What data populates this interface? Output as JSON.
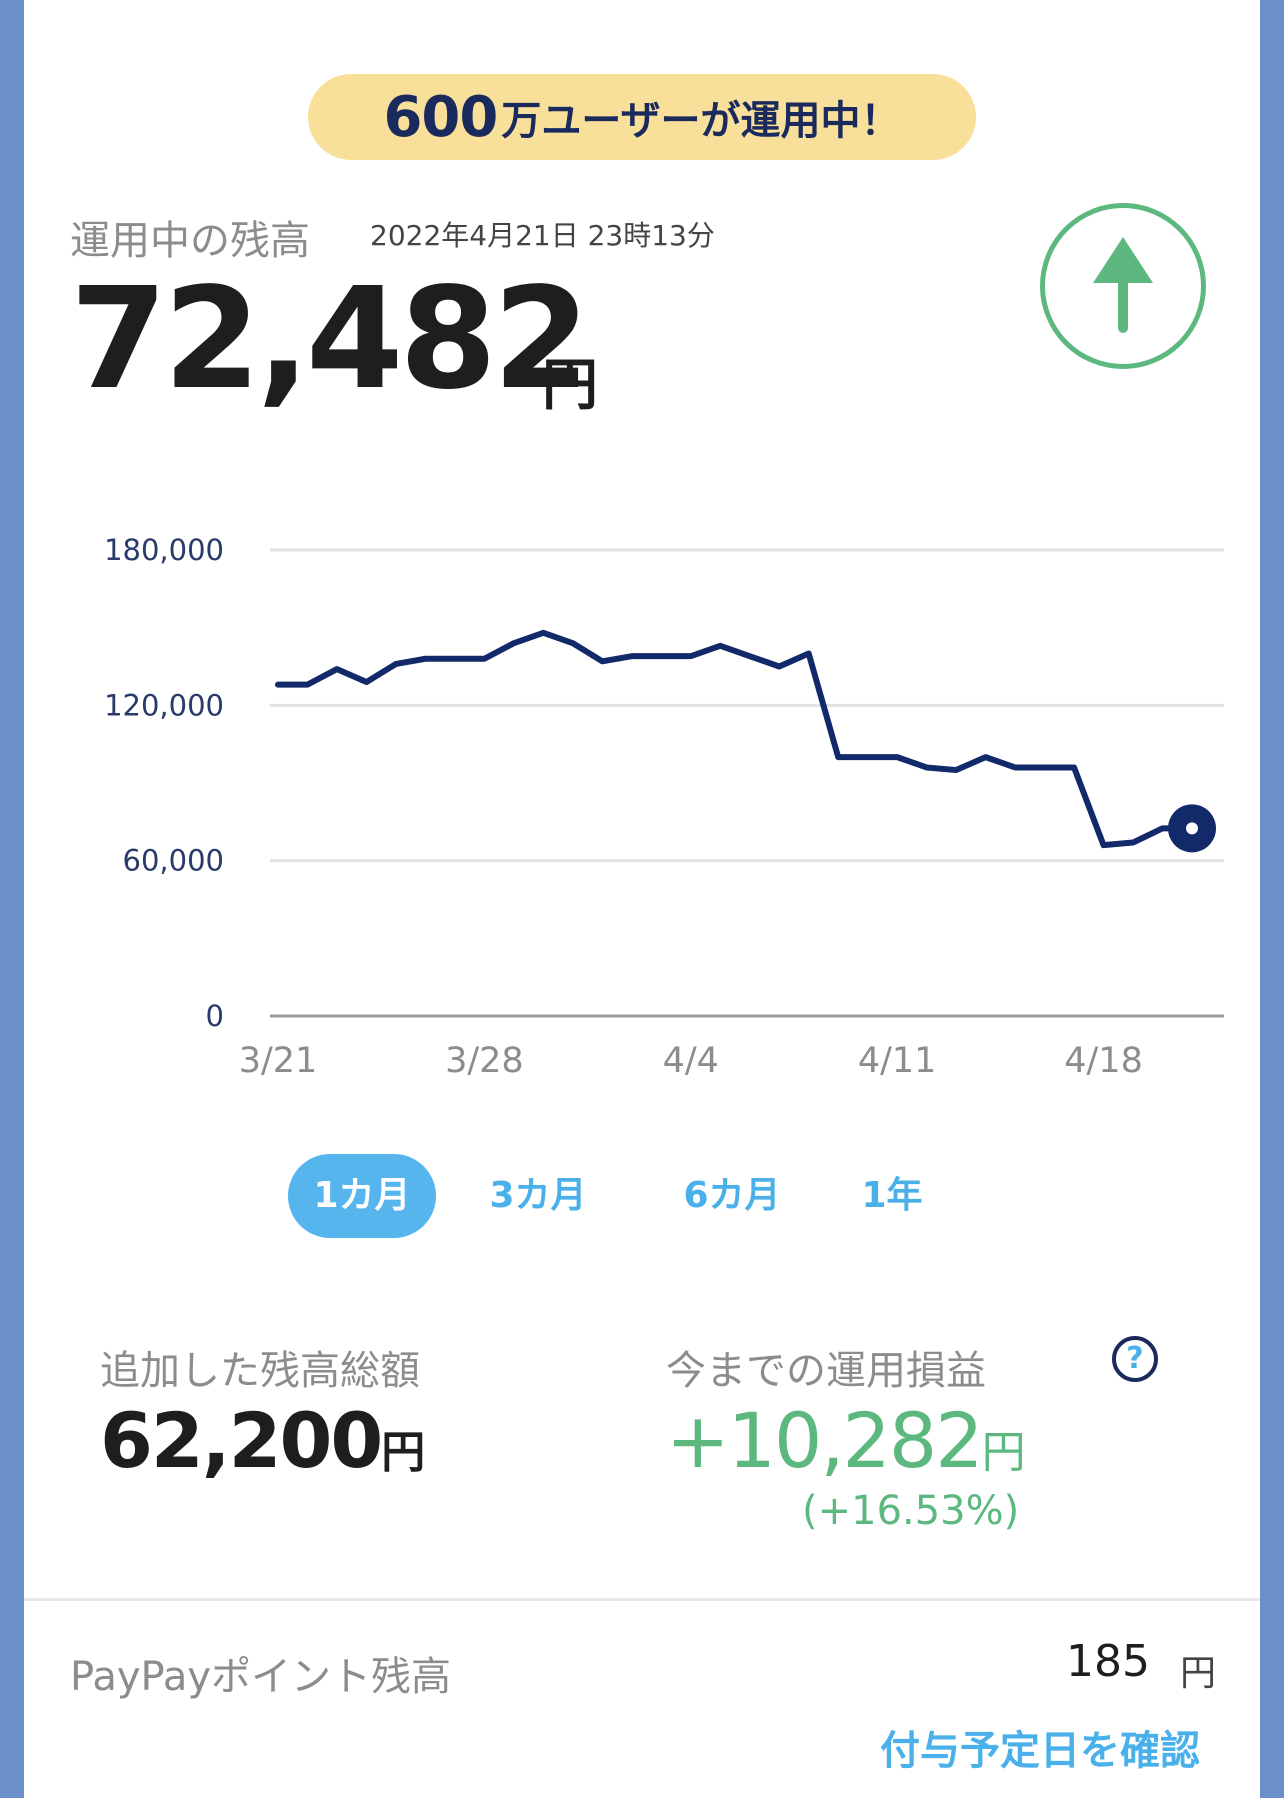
{
  "banner": {
    "count": "600",
    "text": "万ユーザーが運用中！"
  },
  "balance": {
    "label": "運用中の残高",
    "timestamp": "2022年4月21日 23時13分",
    "value": "72,482",
    "unit": "円"
  },
  "trend_icon": "arrow-up-icon",
  "colors": {
    "line": "#122a6a",
    "up": "#5cb87e",
    "accent": "#4ab0ea",
    "banner": "#f8e09a"
  },
  "chart_data": {
    "type": "line",
    "x_ticks": [
      "3/21",
      "3/28",
      "4/4",
      "4/11",
      "4/18"
    ],
    "y_ticks": [
      "180,000",
      "120,000",
      "60,000",
      "0"
    ],
    "ylim": [
      0,
      180000
    ],
    "grid": true,
    "series": [
      {
        "x": [
          "3/21",
          "3/22",
          "3/23",
          "3/24",
          "3/25",
          "3/26",
          "3/27",
          "3/28",
          "3/29",
          "3/30",
          "3/31",
          "4/1",
          "4/2",
          "4/3",
          "4/4",
          "4/5",
          "4/6",
          "4/7",
          "4/8",
          "4/9",
          "4/10",
          "4/11",
          "4/12",
          "4/13",
          "4/14",
          "4/15",
          "4/16",
          "4/17",
          "4/18",
          "4/19",
          "4/20",
          "4/21"
        ],
        "values": [
          128000,
          128000,
          134000,
          129000,
          136000,
          138000,
          138000,
          138000,
          144000,
          148000,
          144000,
          137000,
          139000,
          139000,
          139000,
          143000,
          139000,
          135000,
          140000,
          100000,
          100000,
          100000,
          96000,
          95000,
          100000,
          96000,
          96000,
          96000,
          66000,
          67000,
          72482,
          72482
        ]
      }
    ]
  },
  "periods": [
    "1カ月",
    "3カ月",
    "6カ月",
    "1年"
  ],
  "active_period": "1カ月",
  "summary": {
    "added_label": "追加した残高総額",
    "added_value": "62,200",
    "added_unit": "円",
    "pl_label": "今までの運用損益",
    "pl_value": "+10,282",
    "pl_unit": "円",
    "pl_pct": "(+16.53%)",
    "help": "?"
  },
  "paypay": {
    "label": "PayPayポイント残高",
    "value": "185",
    "unit": "円",
    "confirm": "付与予定日を確認"
  }
}
